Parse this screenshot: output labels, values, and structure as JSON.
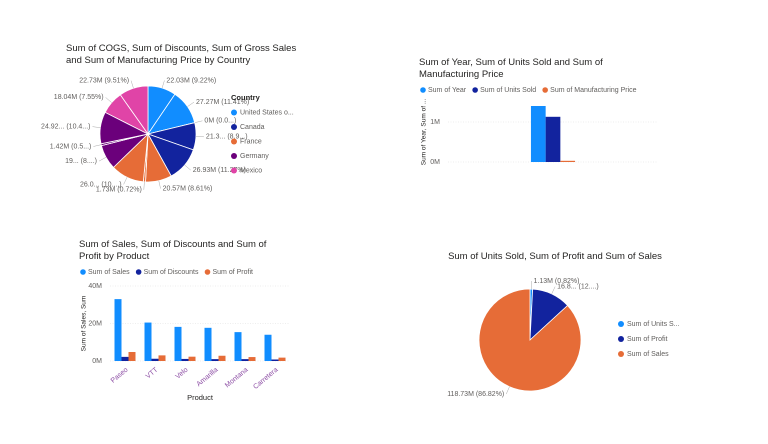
{
  "chart_data": [
    {
      "type": "pie",
      "title": "Sum of COGS, Sum of Discounts, Sum of Gross Sales and Sum of Manufacturing Price by Country",
      "legend_title": "Country",
      "legend_items": [
        {
          "name": "United States o...",
          "color": "#118dff"
        },
        {
          "name": "Canada",
          "color": "#12239e"
        },
        {
          "name": "France",
          "color": "#e66c37"
        },
        {
          "name": "Germany",
          "color": "#6b007b"
        },
        {
          "name": "Mexico",
          "color": "#e044a7"
        }
      ],
      "values": [
        22030000,
        27270000,
        0,
        21300000,
        26930000,
        20570000,
        1730000,
        26040000,
        19400000,
        1420000,
        24920000,
        18040000,
        22730000
      ],
      "value_labels": [
        "22.03M (9.22%)",
        "27.27M (11.41%)",
        "0M (0.0...)",
        "21.3... (8.9...)",
        "26.93M (11.27%)",
        "20.57M (8.61%)",
        "1.73M (0.72%)",
        "26.0... (10....)",
        "19... (8....)",
        "1.42M (0.5...)",
        "24.92... (10.4...)",
        "18.04M (7.55%)",
        "22.73M (9.51%)"
      ],
      "colors": [
        "#118dff",
        "#118dff",
        "#12239e",
        "#12239e",
        "#12239e",
        "#e66c37",
        "#e66c37",
        "#e66c37",
        "#6b007b",
        "#6b007b",
        "#6b007b",
        "#e044a7",
        "#e044a7"
      ]
    },
    {
      "type": "bar",
      "title": "Sum of Year, Sum of Units Sold and Sum of Manufacturing Price",
      "y_label": "Sum of Year, Sum of ...",
      "categories": [
        null
      ],
      "series": [
        {
          "name": "Sum of Year",
          "color": "#118dff",
          "values": [
            1400000
          ]
        },
        {
          "name": "Sum of Units Sold",
          "color": "#12239e",
          "values": [
            1130000
          ]
        },
        {
          "name": "Sum of Manufacturing Price",
          "color": "#e66c37",
          "values": [
            30000
          ]
        }
      ],
      "ylim": [
        0,
        1500000
      ],
      "yticks": [
        {
          "value": 0,
          "label": "0M"
        },
        {
          "value": 1000000,
          "label": "1M"
        }
      ],
      "grid": true
    },
    {
      "type": "bar",
      "title": "Sum of Sales, Sum of Discounts and Sum of Profit by Product",
      "x_label": "Product",
      "y_label": "Sum of Sales, Sum",
      "categories": [
        "Paseo",
        "VTT",
        "Velo",
        "Amarilla",
        "Montana",
        "Carretera"
      ],
      "series": [
        {
          "name": "Sum of Sales",
          "color": "#118dff",
          "values": [
            33000000,
            20500000,
            18200000,
            17700000,
            15400000,
            14000000
          ]
        },
        {
          "name": "Sum of Discounts",
          "color": "#12239e",
          "values": [
            2200000,
            1200000,
            1100000,
            1000000,
            1000000,
            800000
          ]
        },
        {
          "name": "Sum of Profit",
          "color": "#e66c37",
          "values": [
            4800000,
            3000000,
            2300000,
            2800000,
            2100000,
            1800000
          ]
        }
      ],
      "ylim": [
        0,
        40000000
      ],
      "yticks": [
        {
          "value": 0,
          "label": "0M"
        },
        {
          "value": 20000000,
          "label": "20M"
        },
        {
          "value": 40000000,
          "label": "40M"
        }
      ],
      "grid": true
    },
    {
      "type": "pie",
      "title": "Sum of Units Sold, Sum of Profit and Sum of Sales",
      "legend_items": [
        {
          "name": "Sum of Units S...",
          "color": "#118dff"
        },
        {
          "name": "Sum of Profit",
          "color": "#12239e"
        },
        {
          "name": "Sum of Sales",
          "color": "#e66c37"
        }
      ],
      "values": [
        1130000,
        16890000,
        118730000
      ],
      "value_labels": [
        "1.13M (0.82%)",
        "16.8... (12....)",
        "118.73M (86.82%)"
      ],
      "colors": [
        "#118dff",
        "#12239e",
        "#e66c37"
      ]
    }
  ]
}
